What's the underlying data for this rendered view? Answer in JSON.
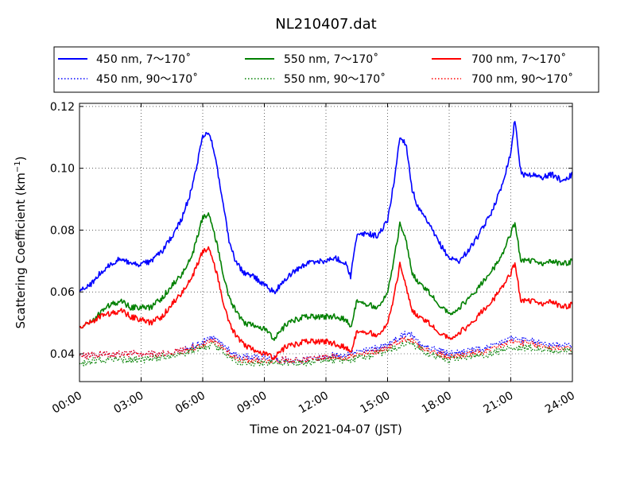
{
  "chart_data": {
    "type": "line",
    "title": "NL210407.dat",
    "xlabel": "Time on 2021-04-07 (JST)",
    "ylabel": "Scattering Coefficient (km",
    "ylabel_sup": "−1",
    "ylabel_close": ")",
    "xlim": [
      0,
      24
    ],
    "ylim": [
      0.031,
      0.121
    ],
    "grid": true,
    "legend_position": "top",
    "x_tick_labels": [
      {
        "x": 0,
        "label": "00:00"
      },
      {
        "x": 3,
        "label": "03:00"
      },
      {
        "x": 6,
        "label": "06:00"
      },
      {
        "x": 9,
        "label": "09:00"
      },
      {
        "x": 12,
        "label": "12:00"
      },
      {
        "x": 15,
        "label": "15:00"
      },
      {
        "x": 18,
        "label": "18:00"
      },
      {
        "x": 21,
        "label": "21:00"
      },
      {
        "x": 24,
        "label": "24:00"
      }
    ],
    "y_tick_labels": [
      {
        "y": 0.04,
        "label": "0.04"
      },
      {
        "y": 0.06,
        "label": "0.06"
      },
      {
        "y": 0.08,
        "label": "0.08"
      },
      {
        "y": 0.1,
        "label": "0.10"
      },
      {
        "y": 0.12,
        "label": "0.12"
      }
    ],
    "series": [
      {
        "name": "450 nm, 7～170˚",
        "color": "#0000ff",
        "style": "solid",
        "x": [
          0,
          0.5,
          1,
          1.5,
          2,
          2.5,
          3,
          3.5,
          4,
          4.5,
          5,
          5.5,
          6,
          6.3,
          6.6,
          7,
          7.3,
          7.6,
          8,
          8.5,
          9,
          9.5,
          10,
          10.5,
          11,
          11.5,
          12,
          12.5,
          13,
          13.2,
          13.5,
          14,
          14.5,
          15,
          15.3,
          15.6,
          15.9,
          16.2,
          16.5,
          17,
          17.5,
          18,
          18.5,
          19,
          19.5,
          20,
          20.5,
          21,
          21.2,
          21.5,
          22,
          22.5,
          23,
          23.5,
          24
        ],
        "y": [
          0.06,
          0.062,
          0.066,
          0.069,
          0.071,
          0.069,
          0.069,
          0.07,
          0.073,
          0.078,
          0.084,
          0.094,
          0.11,
          0.112,
          0.104,
          0.088,
          0.076,
          0.07,
          0.066,
          0.065,
          0.062,
          0.06,
          0.064,
          0.067,
          0.069,
          0.07,
          0.07,
          0.071,
          0.069,
          0.065,
          0.078,
          0.079,
          0.078,
          0.083,
          0.095,
          0.11,
          0.108,
          0.093,
          0.087,
          0.082,
          0.076,
          0.071,
          0.07,
          0.074,
          0.079,
          0.085,
          0.093,
          0.105,
          0.116,
          0.098,
          0.098,
          0.097,
          0.098,
          0.096,
          0.098
        ]
      },
      {
        "name": "450 nm, 90～170˚",
        "color": "#0000ff",
        "style": "dotted",
        "x": [
          0,
          1,
          2,
          3,
          4,
          5,
          6,
          6.5,
          7,
          7.5,
          8,
          9,
          10,
          11,
          12,
          13,
          14,
          15,
          15.5,
          16,
          16.5,
          17,
          18,
          19,
          20,
          21,
          22,
          23,
          24
        ],
        "y": [
          0.039,
          0.04,
          0.04,
          0.04,
          0.04,
          0.041,
          0.044,
          0.045,
          0.043,
          0.04,
          0.039,
          0.039,
          0.038,
          0.038,
          0.039,
          0.04,
          0.041,
          0.043,
          0.045,
          0.047,
          0.044,
          0.042,
          0.04,
          0.041,
          0.042,
          0.045,
          0.044,
          0.043,
          0.043
        ]
      },
      {
        "name": "550 nm, 7～170˚",
        "color": "#008000",
        "style": "solid",
        "x": [
          0,
          0.5,
          1,
          1.5,
          2,
          2.5,
          3,
          3.5,
          4,
          4.5,
          5,
          5.5,
          6,
          6.3,
          6.6,
          7,
          7.3,
          7.6,
          8,
          8.5,
          9,
          9.5,
          10,
          10.5,
          11,
          11.5,
          12,
          12.5,
          13,
          13.2,
          13.5,
          14,
          14.5,
          15,
          15.3,
          15.6,
          15.9,
          16.2,
          16.5,
          17,
          17.5,
          18,
          18.5,
          19,
          19.5,
          20,
          20.5,
          21,
          21.2,
          21.5,
          22,
          22.5,
          23,
          23.5,
          24
        ],
        "y": [
          0.049,
          0.05,
          0.053,
          0.056,
          0.057,
          0.055,
          0.055,
          0.055,
          0.058,
          0.062,
          0.066,
          0.072,
          0.084,
          0.085,
          0.078,
          0.066,
          0.058,
          0.054,
          0.05,
          0.049,
          0.048,
          0.045,
          0.049,
          0.051,
          0.052,
          0.052,
          0.052,
          0.052,
          0.051,
          0.048,
          0.057,
          0.056,
          0.055,
          0.06,
          0.07,
          0.082,
          0.077,
          0.066,
          0.063,
          0.06,
          0.056,
          0.053,
          0.055,
          0.058,
          0.062,
          0.066,
          0.071,
          0.079,
          0.082,
          0.07,
          0.07,
          0.069,
          0.07,
          0.069,
          0.07
        ]
      },
      {
        "name": "550 nm, 90～170˚",
        "color": "#008000",
        "style": "dotted",
        "x": [
          0,
          1,
          2,
          3,
          4,
          5,
          6,
          6.5,
          7,
          7.5,
          8,
          9,
          10,
          11,
          12,
          13,
          14,
          15,
          15.5,
          16,
          16.5,
          17,
          18,
          19,
          20,
          21,
          22,
          23,
          24
        ],
        "y": [
          0.037,
          0.038,
          0.038,
          0.038,
          0.039,
          0.04,
          0.042,
          0.043,
          0.041,
          0.038,
          0.037,
          0.037,
          0.037,
          0.037,
          0.038,
          0.038,
          0.039,
          0.041,
          0.042,
          0.044,
          0.042,
          0.04,
          0.038,
          0.039,
          0.04,
          0.042,
          0.042,
          0.041,
          0.041
        ]
      },
      {
        "name": "700 nm, 7～170˚",
        "color": "#ff0000",
        "style": "solid",
        "x": [
          0,
          0.5,
          1,
          1.5,
          2,
          2.5,
          3,
          3.5,
          4,
          4.5,
          5,
          5.5,
          6,
          6.3,
          6.6,
          7,
          7.3,
          7.6,
          8,
          8.5,
          9,
          9.5,
          10,
          10.5,
          11,
          11.5,
          12,
          12.5,
          13,
          13.2,
          13.5,
          14,
          14.5,
          15,
          15.3,
          15.6,
          15.9,
          16.2,
          16.5,
          17,
          17.5,
          18,
          18.5,
          19,
          19.5,
          20,
          20.5,
          21,
          21.2,
          21.5,
          22,
          22.5,
          23,
          23.5,
          24
        ],
        "y": [
          0.049,
          0.05,
          0.052,
          0.053,
          0.054,
          0.052,
          0.051,
          0.05,
          0.052,
          0.056,
          0.06,
          0.065,
          0.073,
          0.074,
          0.068,
          0.057,
          0.05,
          0.046,
          0.043,
          0.041,
          0.04,
          0.039,
          0.042,
          0.043,
          0.044,
          0.044,
          0.044,
          0.043,
          0.042,
          0.04,
          0.047,
          0.047,
          0.046,
          0.05,
          0.058,
          0.069,
          0.062,
          0.054,
          0.052,
          0.05,
          0.047,
          0.045,
          0.047,
          0.049,
          0.053,
          0.056,
          0.061,
          0.066,
          0.069,
          0.057,
          0.057,
          0.056,
          0.057,
          0.055,
          0.056
        ]
      },
      {
        "name": "700 nm, 90～170˚",
        "color": "#ff0000",
        "style": "dotted",
        "x": [
          0,
          1,
          2,
          3,
          4,
          5,
          6,
          6.5,
          7,
          7.5,
          8,
          9,
          10,
          11,
          12,
          13,
          14,
          15,
          15.5,
          16,
          16.5,
          17,
          18,
          19,
          20,
          21,
          22,
          23,
          24
        ],
        "y": [
          0.039,
          0.04,
          0.04,
          0.04,
          0.04,
          0.041,
          0.043,
          0.044,
          0.042,
          0.039,
          0.038,
          0.038,
          0.038,
          0.038,
          0.039,
          0.039,
          0.04,
          0.042,
          0.044,
          0.045,
          0.043,
          0.041,
          0.039,
          0.04,
          0.041,
          0.044,
          0.043,
          0.042,
          0.042
        ]
      }
    ]
  }
}
